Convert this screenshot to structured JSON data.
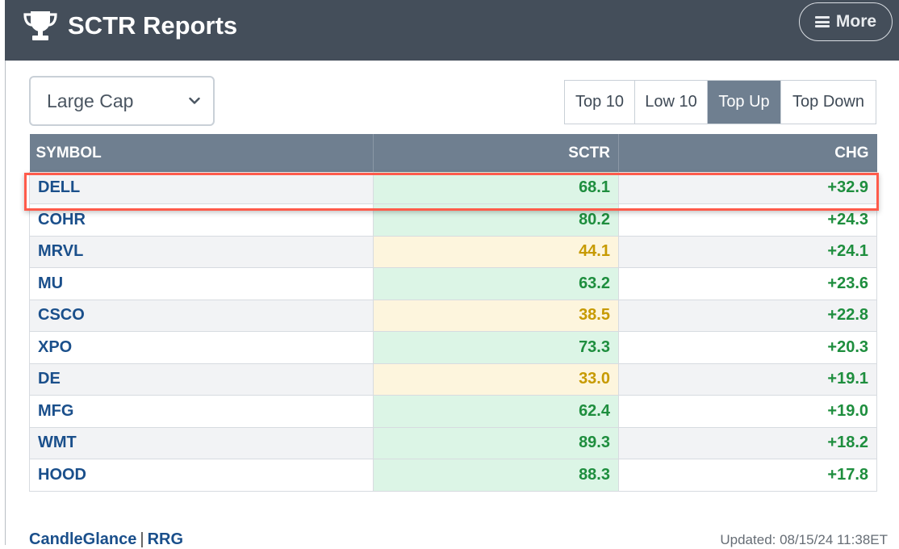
{
  "header": {
    "title": "SCTR Reports",
    "more_label": "More",
    "background": "#444e5a"
  },
  "selector": {
    "selected": "Large Cap"
  },
  "tabs": [
    {
      "label": "Top 10",
      "active": false
    },
    {
      "label": "Low 10",
      "active": false
    },
    {
      "label": "Top Up",
      "active": true
    },
    {
      "label": "Top Down",
      "active": false
    }
  ],
  "table": {
    "columns": [
      "SYMBOL",
      "SCTR",
      "CHG"
    ],
    "rows": [
      {
        "symbol": "DELL",
        "sctr": "68.1",
        "chg": "+32.9",
        "sctr_color": "green"
      },
      {
        "symbol": "COHR",
        "sctr": "80.2",
        "chg": "+24.3",
        "sctr_color": "green"
      },
      {
        "symbol": "MRVL",
        "sctr": "44.1",
        "chg": "+24.1",
        "sctr_color": "yellow"
      },
      {
        "symbol": "MU",
        "sctr": "63.2",
        "chg": "+23.6",
        "sctr_color": "green"
      },
      {
        "symbol": "CSCO",
        "sctr": "38.5",
        "chg": "+22.8",
        "sctr_color": "yellow"
      },
      {
        "symbol": "XPO",
        "sctr": "73.3",
        "chg": "+20.3",
        "sctr_color": "green"
      },
      {
        "symbol": "DE",
        "sctr": "33.0",
        "chg": "+19.1",
        "sctr_color": "yellow"
      },
      {
        "symbol": "MFG",
        "sctr": "62.4",
        "chg": "+19.0",
        "sctr_color": "green"
      },
      {
        "symbol": "WMT",
        "sctr": "89.3",
        "chg": "+18.2",
        "sctr_color": "green"
      },
      {
        "symbol": "HOOD",
        "sctr": "88.3",
        "chg": "+17.8",
        "sctr_color": "green"
      }
    ],
    "highlighted_symbol": "DELL"
  },
  "footer": {
    "link1": "CandleGlance",
    "separator": "|",
    "link2": "RRG",
    "updated": "Updated: 08/15/24 11:38ET"
  },
  "colors": {
    "header_bg": "#444e5a",
    "table_header_bg": "#6f7f90",
    "positive": "#1e8e3e",
    "neutral_yellow": "#c79a00",
    "highlight_border": "#ff5b4b",
    "link": "#1a4f8b"
  },
  "icons": [
    "trophy-icon",
    "hamburger-icon",
    "chevron-down-icon"
  ]
}
